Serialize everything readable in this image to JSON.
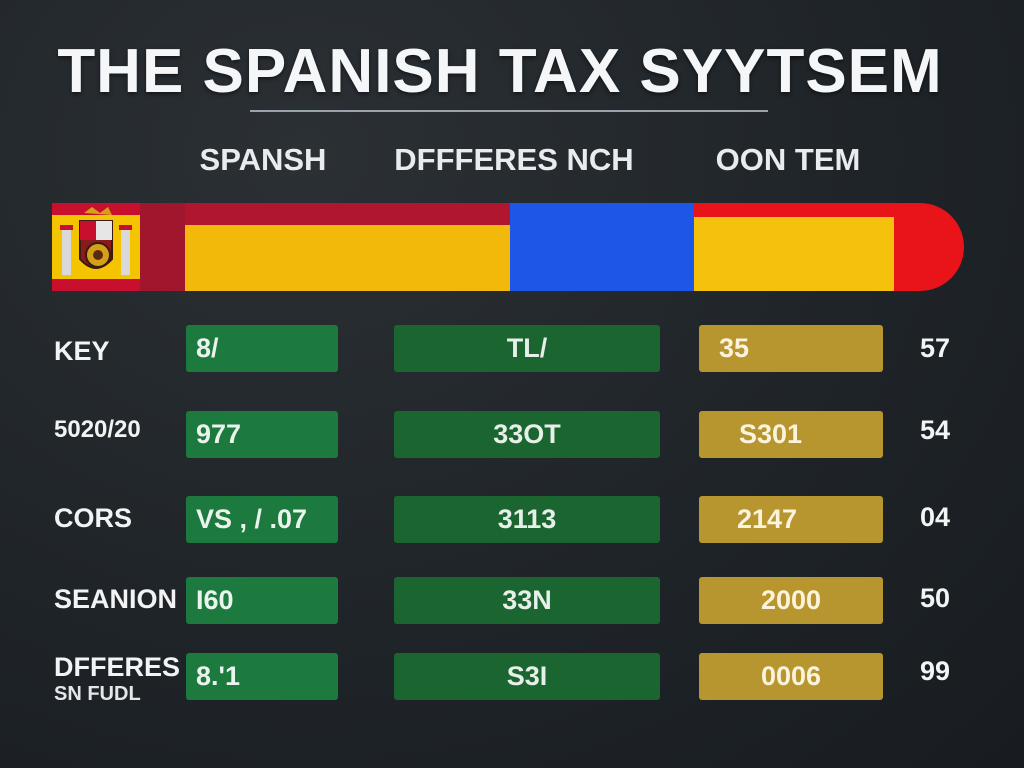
{
  "title": "THE SPANISH TAX SYYTSEM",
  "column_headers": {
    "col1": "SPANSH",
    "col2": "DFFFERES NCH",
    "col3": "OON TEM"
  },
  "colors": {
    "background": "#1f2428",
    "flag_red": "#c8102e",
    "flag_yellow": "#f5c400",
    "band_blue": "#1e56e8",
    "cell_green": "#1d7a3e",
    "cell_dark_green": "#1b6530",
    "cell_gold": "#b8962f"
  },
  "rows": [
    {
      "label": "KEY",
      "sublabel": "",
      "c1": "8/",
      "c2": "TL/",
      "c3": "35",
      "c4": "57"
    },
    {
      "label": "5020/20",
      "sublabel": "",
      "c1": "977",
      "c2": "33OT",
      "c3": "S301",
      "c4": "54"
    },
    {
      "label": "CORS",
      "sublabel": "",
      "c1": "VS , / .07",
      "c2": "3113",
      "c3": "2147",
      "c4": "04"
    },
    {
      "label": "SEANION",
      "sublabel": "",
      "c1": "I60",
      "c2": "33N",
      "c3": "2000",
      "c4": "50"
    },
    {
      "label": "DFFERES",
      "sublabel": "SN FUDL",
      "c1": "8.'1",
      "c2": "S3I",
      "c3": "0006",
      "c4": "99"
    }
  ]
}
